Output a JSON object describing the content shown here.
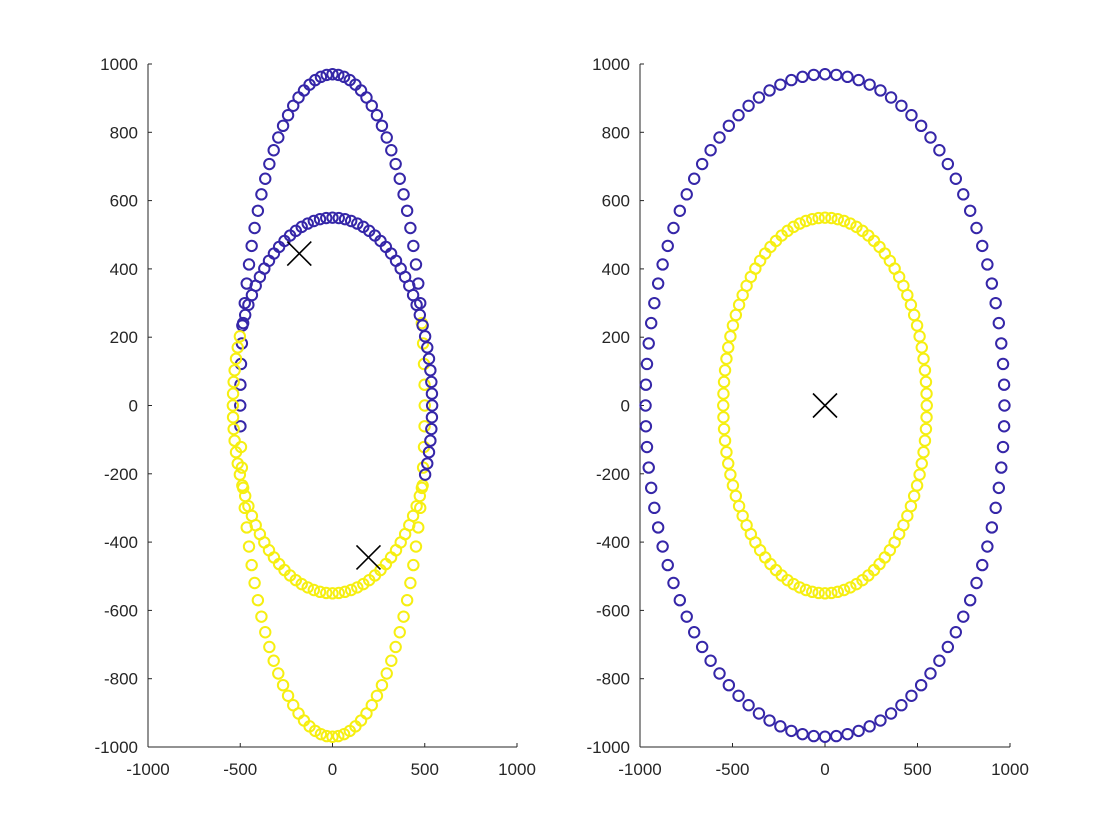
{
  "colors": {
    "cluster_1": "#3526a8",
    "cluster_2": "#f6ef11",
    "centroid": "#000000",
    "axis": "#262626"
  },
  "chart_data": [
    {
      "type": "scatter",
      "title": "",
      "xlabel": "",
      "ylabel": "",
      "xlim": [
        -1000,
        1000
      ],
      "ylim": [
        -1000,
        1000
      ],
      "xticks": [
        -1000,
        -500,
        0,
        500,
        1000
      ],
      "yticks": [
        -1000,
        -800,
        -600,
        -400,
        -200,
        0,
        200,
        400,
        600,
        800,
        1000
      ],
      "xtick_labels": [
        "-1000",
        "-500",
        "0",
        "500",
        "1000"
      ],
      "ytick_labels": [
        "-1000",
        "-800",
        "-600",
        "-400",
        "-200",
        "0",
        "200",
        "400",
        "600",
        "800",
        "1000"
      ],
      "grid": false,
      "marker": "circle",
      "series": [
        {
          "color": "cluster_1",
          "shape": "ellipse",
          "rx": 970,
          "ry": 970,
          "count": 100,
          "arc_deg": [
            20,
            185
          ],
          "note_x_scale": 0.5
        }
      ],
      "rings": [
        {
          "a": 500,
          "b": 970,
          "n": 100,
          "cluster_1_arc_deg": [
            15.5,
            186.5
          ],
          "cluster_2_arc_deg": [
            186.5,
            375.5
          ]
        },
        {
          "a": 540,
          "b": 550,
          "n": 100,
          "cluster_1_arc_deg": [
            -23,
            157
          ],
          "cluster_2_arc_deg": [
            157,
            337
          ]
        }
      ],
      "centroids": [
        {
          "x": -180,
          "y": 445
        },
        {
          "x": 195,
          "y": -445
        }
      ]
    },
    {
      "type": "scatter",
      "title": "",
      "xlabel": "",
      "ylabel": "",
      "xlim": [
        -1000,
        1000
      ],
      "ylim": [
        -1000,
        1000
      ],
      "xticks": [
        -1000,
        -500,
        0,
        500,
        1000
      ],
      "yticks": [
        -1000,
        -800,
        -600,
        -400,
        -200,
        0,
        200,
        400,
        600,
        800,
        1000
      ],
      "xtick_labels": [
        "-1000",
        "-500",
        "0",
        "500",
        "1000"
      ],
      "ytick_labels": [
        "-1000",
        "-800",
        "-600",
        "-400",
        "-200",
        "0",
        "200",
        "400",
        "600",
        "800",
        "1000"
      ],
      "grid": false,
      "marker": "circle",
      "rings": [
        {
          "a": 970,
          "b": 970,
          "n": 100,
          "cluster_1_arc_deg": [
            0,
            360
          ],
          "cluster_2_arc_deg": [
            0,
            0
          ]
        },
        {
          "a": 550,
          "b": 550,
          "n": 100,
          "cluster_1_arc_deg": [
            0,
            0
          ],
          "cluster_2_arc_deg": [
            0,
            360
          ]
        }
      ],
      "centroids": [
        {
          "x": 0,
          "y": 0
        }
      ]
    }
  ]
}
